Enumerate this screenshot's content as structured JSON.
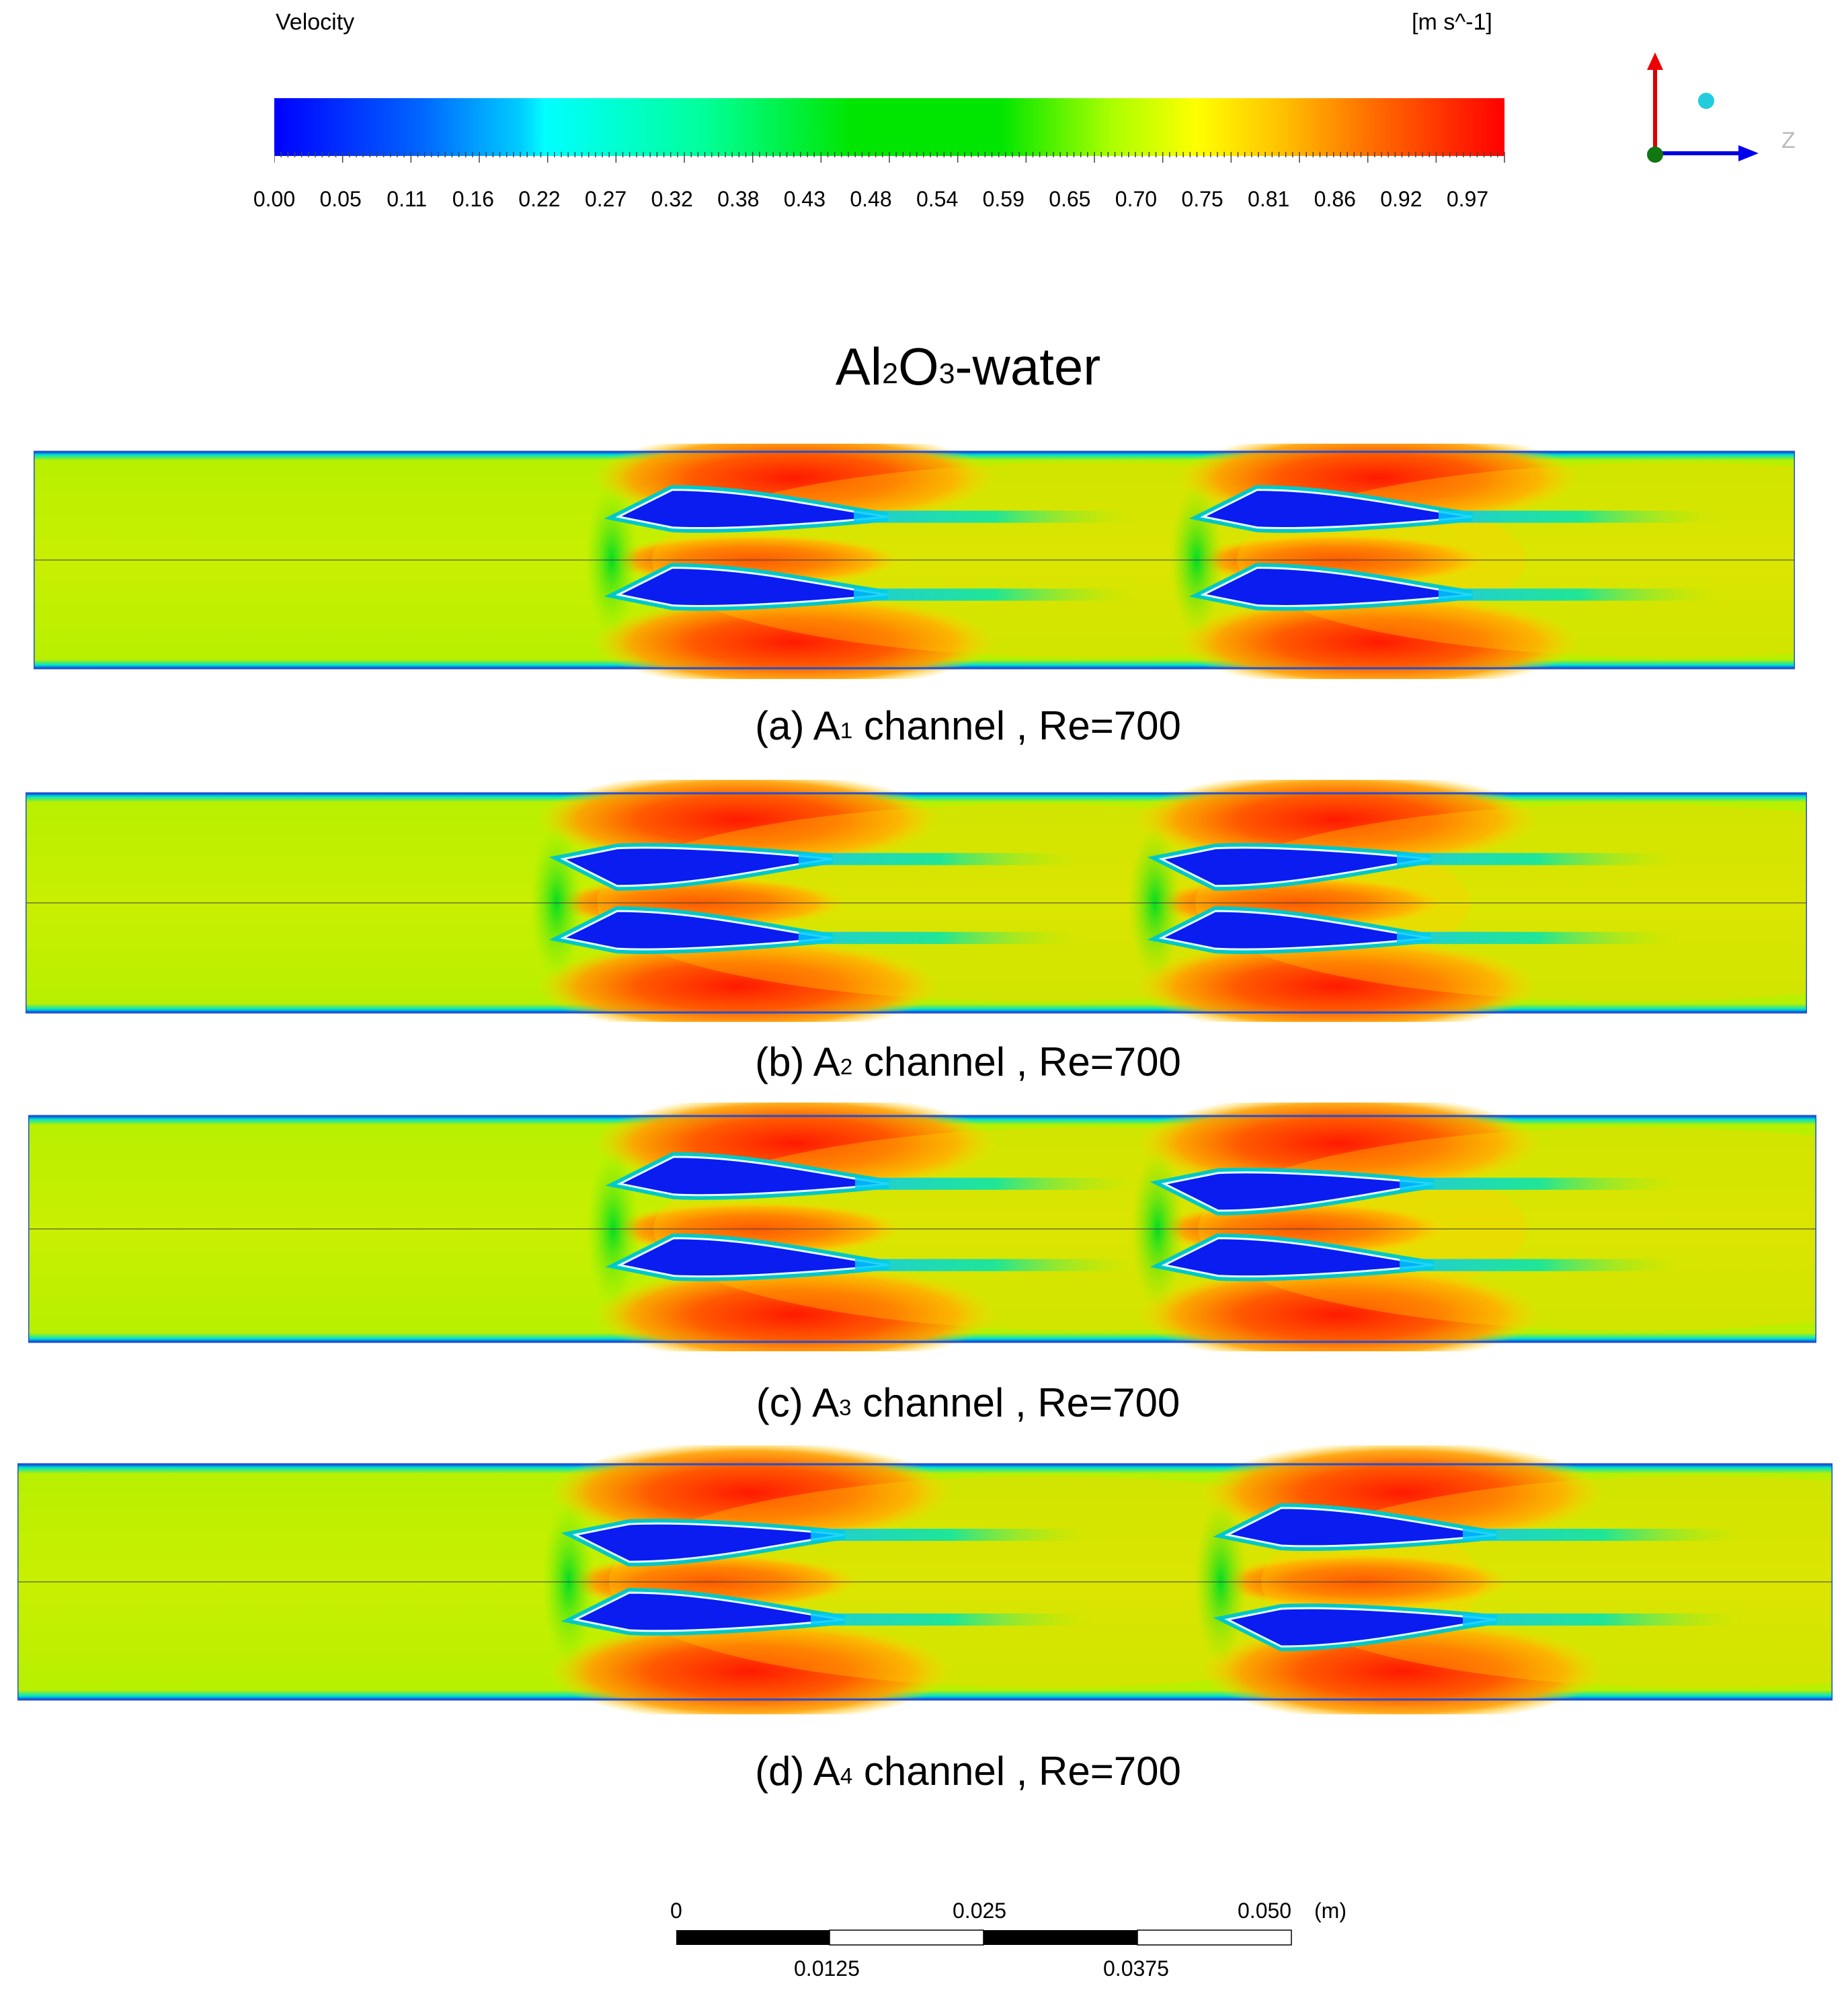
{
  "legend": {
    "title": "Velocity",
    "unit": "[m s^-1]",
    "ticks": [
      "0.00",
      "0.05",
      "0.11",
      "0.16",
      "0.22",
      "0.27",
      "0.32",
      "0.38",
      "0.43",
      "0.48",
      "0.54",
      "0.59",
      "0.65",
      "0.70",
      "0.75",
      "0.81",
      "0.86",
      "0.92",
      "0.97"
    ]
  },
  "title": {
    "base": "Al",
    "sub1": "2",
    "mid": "O",
    "sub2": "3",
    "tail": "-water"
  },
  "panels": [
    {
      "prefix": "(a) A",
      "sub": "1",
      "suffix": " channel , Re=700"
    },
    {
      "prefix": "(b) A",
      "sub": "2",
      "suffix": " channel , Re=700"
    },
    {
      "prefix": "(c) A",
      "sub": "3",
      "suffix": " channel , Re=700"
    },
    {
      "prefix": "(d) A",
      "sub": "4",
      "suffix": " channel , Re=700"
    }
  ],
  "scale": {
    "top_labels": [
      "0",
      "0.025",
      "0.050"
    ],
    "unit": "(m)",
    "bottom_labels": [
      "0.0125",
      "0.0375"
    ]
  },
  "axes": {
    "z_label": "Z"
  },
  "colors": {
    "blue": "#0000ff",
    "cyan": "#00ffff",
    "green": "#00e600",
    "yellow": "#ffff00",
    "orange": "#ff8000",
    "red": "#ff0000"
  }
}
